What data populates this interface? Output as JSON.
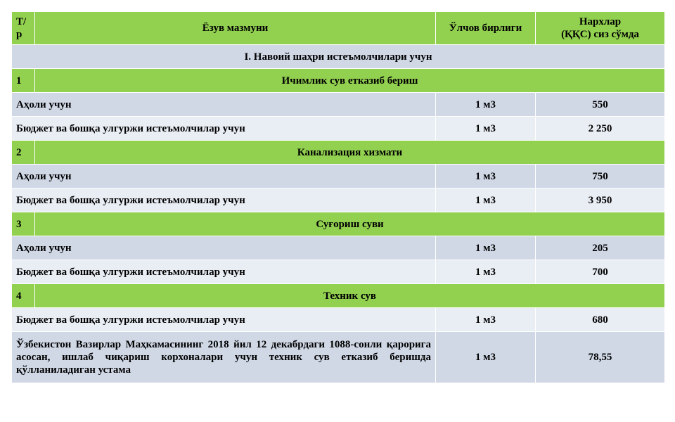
{
  "table": {
    "headers": {
      "num": "Т/р",
      "name": "Ёзув мазмуни",
      "unit": "Ўлчов бирлиги",
      "price_line1": "Нархлар",
      "price_line2": "(ҚҚС) сиз сўмда"
    },
    "region_title": "I. Навоий шаҳри истеъмолчилари учун",
    "sections": [
      {
        "num": "1",
        "title": "Ичимлик сув етказиб бериш",
        "rows": [
          {
            "name": "Аҳоли учун",
            "unit": "1 м3",
            "price": "550"
          },
          {
            "name": "Бюджет ва бошқа улгуржи истеъмолчилар учун",
            "unit": "1 м3",
            "price": "2 250"
          }
        ]
      },
      {
        "num": "2",
        "title": "Канализация хизмати",
        "rows": [
          {
            "name": "Аҳоли учун",
            "unit": "1 м3",
            "price": "750"
          },
          {
            "name": "Бюджет ва бошқа улгуржи истеъмолчилар учун",
            "unit": "1 м3",
            "price": "3 950"
          }
        ]
      },
      {
        "num": "3",
        "title": "Суғориш суви",
        "rows": [
          {
            "name": "Аҳоли учун",
            "unit": "1 м3",
            "price": "205"
          },
          {
            "name": "Бюджет ва бошқа улгуржи истеъмолчилар учун",
            "unit": "1 м3",
            "price": "700"
          }
        ]
      },
      {
        "num": "4",
        "title": "Техник сув",
        "rows": [
          {
            "name": "Бюджет ва бошқа улгуржи истеъмолчилар учун",
            "unit": "1 м3",
            "price": "680"
          },
          {
            "name": "Ўзбекистон Вазирлар Маҳкамасининг 2018 йил 12 декабрдаги 1088-сонли қарорига асосан, ишлаб чиқариш корхоналари учун техник сув етказиб беришда қўлланиладиган устама",
            "unit": "1 м3",
            "price": "78,55"
          }
        ]
      }
    ]
  },
  "colors": {
    "header_green": "#92d050",
    "row_blue": "#d0d8e6",
    "row_light": "#e9edf4"
  }
}
